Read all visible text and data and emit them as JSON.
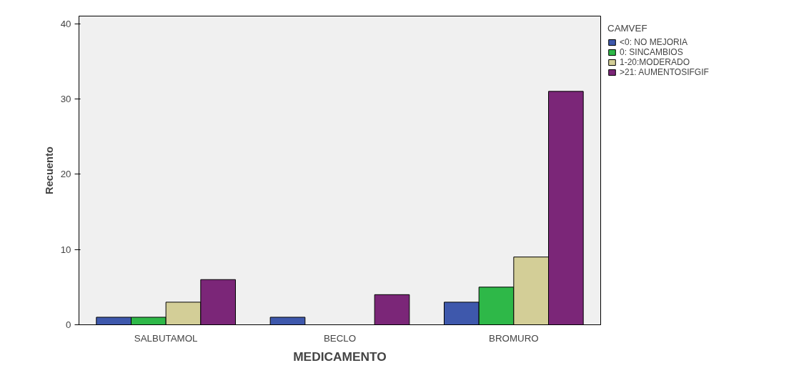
{
  "chart_data": {
    "type": "bar",
    "xlabel": "MEDICAMENTO",
    "ylabel": "Recuento",
    "legend_title": "CAMVEF",
    "categories": [
      "SALBUTAMOL",
      "BECLO",
      "BROMURO"
    ],
    "series": [
      {
        "name": "<0: NO MEJORIA",
        "color": "#3e58ac",
        "values": [
          1,
          1,
          3
        ]
      },
      {
        "name": "0: SINCAMBIOS",
        "color": "#2eb848",
        "values": [
          1,
          null,
          5
        ]
      },
      {
        "name": "1-20:MODERADO",
        "color": "#d3ce97",
        "values": [
          3,
          null,
          9
        ]
      },
      {
        "name": ">21: AUMENTOSIFGIF",
        "color": "#7b2678",
        "values": [
          6,
          4,
          31
        ]
      }
    ],
    "ylim": [
      0,
      41
    ],
    "yticks": [
      0,
      10,
      20,
      30,
      40
    ],
    "grid": false,
    "legend": "top right"
  }
}
